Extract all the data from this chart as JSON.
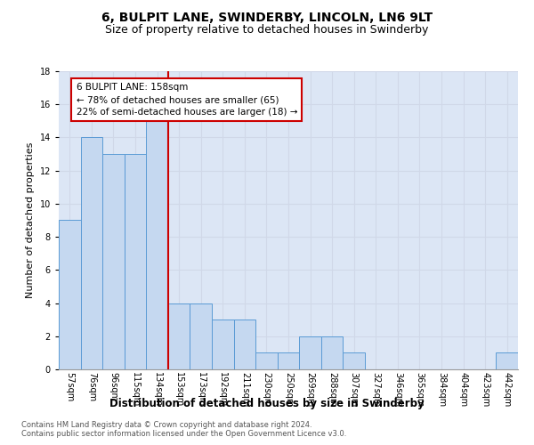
{
  "title": "6, BULPIT LANE, SWINDERBY, LINCOLN, LN6 9LT",
  "subtitle": "Size of property relative to detached houses in Swinderby",
  "xlabel": "Distribution of detached houses by size in Swinderby",
  "ylabel": "Number of detached properties",
  "categories": [
    "57sqm",
    "76sqm",
    "96sqm",
    "115sqm",
    "134sqm",
    "153sqm",
    "173sqm",
    "192sqm",
    "211sqm",
    "230sqm",
    "250sqm",
    "269sqm",
    "288sqm",
    "307sqm",
    "327sqm",
    "346sqm",
    "365sqm",
    "384sqm",
    "404sqm",
    "423sqm",
    "442sqm"
  ],
  "values": [
    9,
    14,
    13,
    13,
    15,
    4,
    4,
    3,
    3,
    1,
    1,
    2,
    2,
    1,
    0,
    0,
    0,
    0,
    0,
    0,
    1
  ],
  "bar_color": "#c5d8f0",
  "bar_edge_color": "#5b9bd5",
  "annotation_text": "6 BULPIT LANE: 158sqm\n← 78% of detached houses are smaller (65)\n22% of semi-detached houses are larger (18) →",
  "annotation_box_edge": "#cc0000",
  "ylim": [
    0,
    18
  ],
  "yticks": [
    0,
    2,
    4,
    6,
    8,
    10,
    12,
    14,
    16,
    18
  ],
  "grid_color": "#d0d8e8",
  "bg_color": "#dce6f5",
  "footer1": "Contains HM Land Registry data © Crown copyright and database right 2024.",
  "footer2": "Contains public sector information licensed under the Open Government Licence v3.0.",
  "title_fontsize": 10,
  "subtitle_fontsize": 9,
  "tick_fontsize": 7,
  "ylabel_fontsize": 8,
  "xlabel_fontsize": 8.5,
  "annotation_fontsize": 7.5,
  "footer_fontsize": 6,
  "red_line_color": "#cc0000"
}
